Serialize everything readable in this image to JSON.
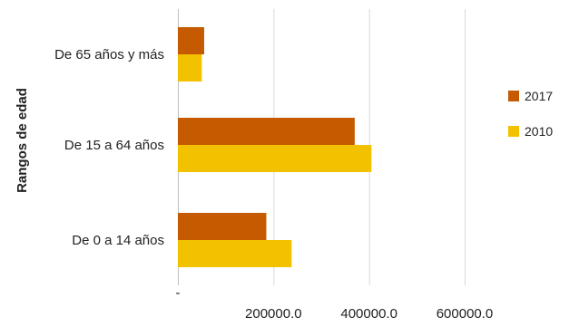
{
  "chart_data": {
    "type": "bar",
    "orientation": "horizontal",
    "title": "",
    "ylabel": "Rangos de edad",
    "xlabel": "",
    "categories": [
      "De 0 a 14 años",
      "De 15 a 64 años",
      "De 65 años y más"
    ],
    "series": [
      {
        "name": "2017",
        "color": "#C55A00",
        "values": [
          185000,
          370000,
          55000
        ]
      },
      {
        "name": "2010",
        "color": "#F2C100",
        "values": [
          238000,
          405000,
          50000
        ]
      }
    ],
    "x_ticks": [
      "-",
      "200000.0",
      "400000.0",
      "600000.0"
    ],
    "x_tick_values": [
      0,
      200000,
      400000,
      600000
    ],
    "xlim": [
      0,
      600000
    ],
    "grid": "vertical",
    "grid_color": "#D9D9D9",
    "legend_position": "right"
  }
}
